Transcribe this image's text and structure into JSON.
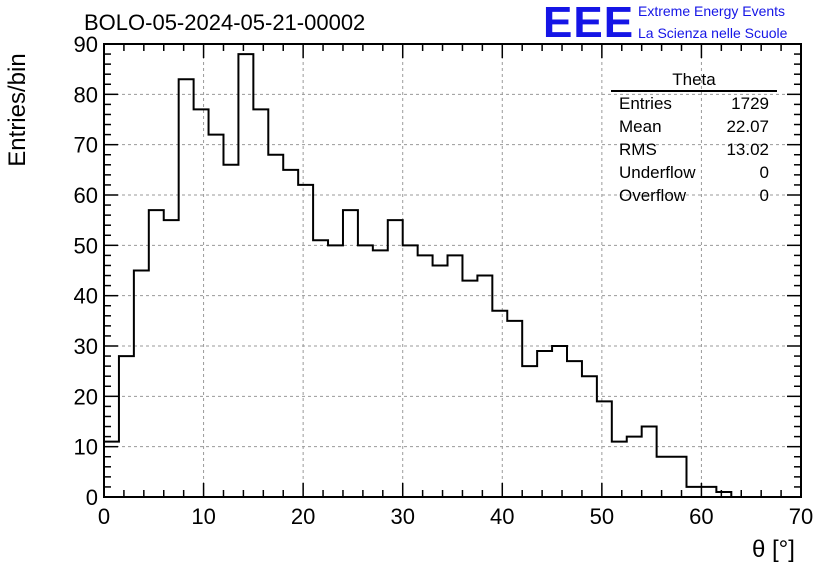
{
  "header": {
    "title": "BOLO-05-2024-05-21-00002",
    "logo_text": "EEE",
    "logo_line1": "Extreme Energy Events",
    "logo_line2": "La Scienza nelle Scuole"
  },
  "stats_box": {
    "name": "Theta",
    "rows": [
      {
        "label": "Entries",
        "value": "1729"
      },
      {
        "label": "Mean",
        "value": "22.07"
      },
      {
        "label": "RMS",
        "value": "13.02"
      },
      {
        "label": "Underflow",
        "value": "0"
      },
      {
        "label": "Overflow",
        "value": "0"
      }
    ]
  },
  "chart_data": {
    "type": "bar",
    "subtype": "histogram-step",
    "title": "BOLO-05-2024-05-21-00002",
    "xlabel": "θ [°]",
    "ylabel": "Entries/bin",
    "xlim": [
      0,
      70
    ],
    "ylim": [
      0,
      90
    ],
    "xticks": [
      0,
      10,
      20,
      30,
      40,
      50,
      60,
      70
    ],
    "yticks": [
      0,
      10,
      20,
      30,
      40,
      50,
      60,
      70,
      80,
      90
    ],
    "grid": true,
    "bin_width": 1.5,
    "bin_start": 0,
    "values": [
      11,
      28,
      45,
      57,
      55,
      83,
      77,
      72,
      66,
      88,
      77,
      68,
      65,
      62,
      51,
      50,
      57,
      50,
      49,
      55,
      50,
      48,
      46,
      48,
      43,
      44,
      37,
      35,
      26,
      29,
      30,
      27,
      24,
      19,
      11,
      12,
      14,
      8,
      8,
      2,
      2,
      1,
      0
    ],
    "colors": {
      "line": "#000000",
      "grid": "#9a9a9a",
      "frame": "#000000"
    }
  }
}
